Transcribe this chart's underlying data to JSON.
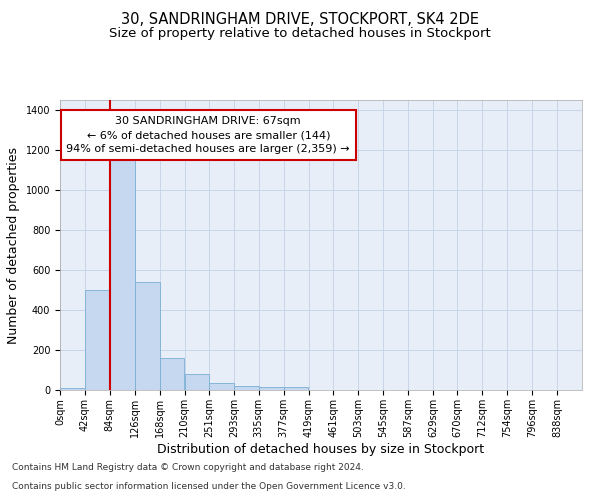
{
  "title_line1": "30, SANDRINGHAM DRIVE, STOCKPORT, SK4 2DE",
  "title_line2": "Size of property relative to detached houses in Stockport",
  "xlabel": "Distribution of detached houses by size in Stockport",
  "ylabel": "Number of detached properties",
  "footer_line1": "Contains HM Land Registry data © Crown copyright and database right 2024.",
  "footer_line2": "Contains public sector information licensed under the Open Government Licence v3.0.",
  "bar_left_edges": [
    0,
    42,
    84,
    126,
    168,
    210,
    251,
    293,
    335,
    377,
    419,
    461,
    503,
    545,
    587,
    629,
    670,
    712,
    754,
    796
  ],
  "bar_widths": [
    42,
    42,
    42,
    42,
    42,
    41,
    42,
    42,
    42,
    42,
    42,
    42,
    42,
    42,
    42,
    41,
    42,
    42,
    42,
    42
  ],
  "bar_heights": [
    8,
    500,
    1150,
    540,
    160,
    80,
    35,
    22,
    15,
    13,
    0,
    0,
    0,
    0,
    0,
    0,
    0,
    0,
    0,
    0
  ],
  "bar_color": "#c5d8ef",
  "bar_edgecolor": "#7aafd4",
  "highlight_x": 84,
  "highlight_color": "#cc0000",
  "annotation_line1": "30 SANDRINGHAM DRIVE: 67sqm",
  "annotation_line2": "← 6% of detached houses are smaller (144)",
  "annotation_line3": "94% of semi-detached houses are larger (2,359) →",
  "ylim": [
    0,
    1450
  ],
  "yticks": [
    0,
    200,
    400,
    600,
    800,
    1000,
    1200,
    1400
  ],
  "xtick_labels": [
    "0sqm",
    "42sqm",
    "84sqm",
    "126sqm",
    "168sqm",
    "210sqm",
    "251sqm",
    "293sqm",
    "335sqm",
    "377sqm",
    "419sqm",
    "461sqm",
    "503sqm",
    "545sqm",
    "587sqm",
    "629sqm",
    "670sqm",
    "712sqm",
    "754sqm",
    "796sqm",
    "838sqm"
  ],
  "xtick_positions": [
    0,
    42,
    84,
    126,
    168,
    210,
    251,
    293,
    335,
    377,
    419,
    461,
    503,
    545,
    587,
    629,
    670,
    712,
    754,
    796,
    838
  ],
  "xlim": [
    0,
    880
  ],
  "grid_color": "#c8d4e8",
  "bg_color": "#e8eef8",
  "title1_fontsize": 10.5,
  "title2_fontsize": 9.5,
  "axis_label_fontsize": 9,
  "tick_fontsize": 7,
  "annotation_fontsize": 8,
  "footer_fontsize": 6.5
}
